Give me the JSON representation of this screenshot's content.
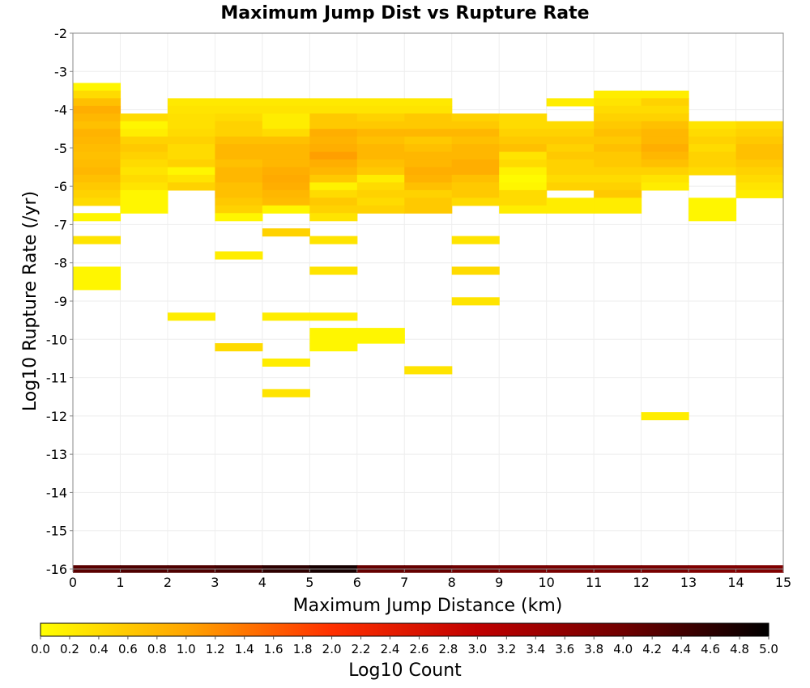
{
  "chart_data": {
    "type": "heatmap",
    "title": "Maximum Jump Dist vs Rupture Rate",
    "xlabel": "Maximum Jump Distance (km)",
    "ylabel": "Log10 Rupture Rate (/yr)",
    "xlim": [
      0,
      15
    ],
    "ylim": [
      -16,
      -2
    ],
    "x_ticks": [
      "0",
      "1",
      "2",
      "3",
      "4",
      "5",
      "6",
      "7",
      "8",
      "9",
      "10",
      "11",
      "12",
      "13",
      "14",
      "15"
    ],
    "y_ticks": [
      "-2",
      "-3",
      "-4",
      "-5",
      "-6",
      "-7",
      "-8",
      "-9",
      "-10",
      "-11",
      "-12",
      "-13",
      "-14",
      "-15",
      "-16"
    ],
    "grid": true,
    "x_bin_width": 1,
    "y_bin_height": 0.2,
    "colorbar": {
      "label": "Log10 Count",
      "min": 0,
      "max": 5,
      "ticks": [
        "0.0",
        "0.2",
        "0.4",
        "0.6",
        "0.8",
        "1.0",
        "1.2",
        "1.4",
        "1.6",
        "1.8",
        "2.0",
        "2.2",
        "2.4",
        "2.6",
        "2.8",
        "3.0",
        "3.2",
        "3.4",
        "3.6",
        "3.8",
        "4.0",
        "4.2",
        "4.4",
        "4.6",
        "4.8",
        "5.0"
      ],
      "colors": [
        "#ffff00",
        "#ffa500",
        "#ff3000",
        "#c00000",
        "#700000",
        "#000000"
      ]
    },
    "columns": [
      {
        "x": 0,
        "cells": [
          [
            -3.4,
            0.1
          ],
          [
            -3.6,
            0.4
          ],
          [
            -3.8,
            0.7
          ],
          [
            -4.0,
            0.9
          ],
          [
            -4.2,
            0.8
          ],
          [
            -4.4,
            0.7
          ],
          [
            -4.6,
            0.85
          ],
          [
            -4.8,
            0.8
          ],
          [
            -5.0,
            0.75
          ],
          [
            -5.2,
            0.7
          ],
          [
            -5.4,
            0.75
          ],
          [
            -5.6,
            0.8
          ],
          [
            -5.8,
            0.7
          ],
          [
            -6.0,
            0.6
          ],
          [
            -6.2,
            0.5
          ],
          [
            -6.4,
            0.4
          ],
          [
            -6.8,
            0.1
          ],
          [
            -7.4,
            0.3
          ],
          [
            -8.2,
            0.1
          ],
          [
            -8.4,
            0.1
          ],
          [
            -8.6,
            0.1
          ]
        ]
      },
      {
        "x": 1,
        "cells": [
          [
            -4.2,
            0.4
          ],
          [
            -4.4,
            0.1
          ],
          [
            -4.6,
            0.2
          ],
          [
            -4.8,
            0.5
          ],
          [
            -5.0,
            0.6
          ],
          [
            -5.2,
            0.5
          ],
          [
            -5.4,
            0.4
          ],
          [
            -5.6,
            0.3
          ],
          [
            -5.8,
            0.4
          ],
          [
            -6.0,
            0.3
          ],
          [
            -6.2,
            0.1
          ],
          [
            -6.4,
            0.1
          ],
          [
            -6.6,
            0.1
          ]
        ]
      },
      {
        "x": 2,
        "cells": [
          [
            -3.8,
            0.25
          ],
          [
            -4.0,
            0.3
          ],
          [
            -4.2,
            0.35
          ],
          [
            -4.4,
            0.35
          ],
          [
            -4.6,
            0.4
          ],
          [
            -4.8,
            0.5
          ],
          [
            -5.0,
            0.4
          ],
          [
            -5.2,
            0.4
          ],
          [
            -5.4,
            0.5
          ],
          [
            -5.6,
            0.1
          ],
          [
            -5.8,
            0.3
          ],
          [
            -6.0,
            0.5
          ],
          [
            -9.4,
            0.2
          ]
        ]
      },
      {
        "x": 3,
        "cells": [
          [
            -3.8,
            0.25
          ],
          [
            -4.0,
            0.3
          ],
          [
            -4.2,
            0.4
          ],
          [
            -4.4,
            0.5
          ],
          [
            -4.6,
            0.5
          ],
          [
            -4.8,
            0.7
          ],
          [
            -5.0,
            0.8
          ],
          [
            -5.2,
            0.8
          ],
          [
            -5.4,
            0.7
          ],
          [
            -5.6,
            0.8
          ],
          [
            -5.8,
            0.8
          ],
          [
            -6.0,
            0.7
          ],
          [
            -6.2,
            0.7
          ],
          [
            -6.4,
            0.6
          ],
          [
            -6.6,
            0.5
          ],
          [
            -6.8,
            0.1
          ],
          [
            -7.8,
            0.2
          ],
          [
            -10.2,
            0.4
          ]
        ]
      },
      {
        "x": 4,
        "cells": [
          [
            -3.8,
            0.25
          ],
          [
            -4.0,
            0.3
          ],
          [
            -4.2,
            0.2
          ],
          [
            -4.4,
            0.2
          ],
          [
            -4.6,
            0.4
          ],
          [
            -4.8,
            0.7
          ],
          [
            -5.0,
            0.8
          ],
          [
            -5.2,
            0.8
          ],
          [
            -5.4,
            0.8
          ],
          [
            -5.6,
            0.9
          ],
          [
            -5.8,
            0.95
          ],
          [
            -6.0,
            0.9
          ],
          [
            -6.2,
            0.8
          ],
          [
            -6.4,
            0.75
          ],
          [
            -6.6,
            0.1
          ],
          [
            -7.2,
            0.5
          ],
          [
            -9.4,
            0.2
          ],
          [
            -10.6,
            0.2
          ],
          [
            -11.4,
            0.3
          ]
        ]
      },
      {
        "x": 5,
        "cells": [
          [
            -3.8,
            0.25
          ],
          [
            -4.0,
            0.3
          ],
          [
            -4.2,
            0.6
          ],
          [
            -4.4,
            0.6
          ],
          [
            -4.6,
            0.9
          ],
          [
            -4.8,
            0.85
          ],
          [
            -5.0,
            0.9
          ],
          [
            -5.2,
            1.05
          ],
          [
            -5.4,
            0.9
          ],
          [
            -5.6,
            0.8
          ],
          [
            -5.8,
            0.6
          ],
          [
            -6.0,
            0.15
          ],
          [
            -6.2,
            0.4
          ],
          [
            -6.4,
            0.6
          ],
          [
            -6.6,
            0.5
          ],
          [
            -6.8,
            0.3
          ],
          [
            -7.4,
            0.3
          ],
          [
            -8.2,
            0.3
          ],
          [
            -9.4,
            0.2
          ],
          [
            -9.8,
            0.1
          ],
          [
            -10.0,
            0.1
          ],
          [
            -10.2,
            0.1
          ]
        ]
      },
      {
        "x": 6,
        "cells": [
          [
            -3.8,
            0.25
          ],
          [
            -4.0,
            0.3
          ],
          [
            -4.2,
            0.5
          ],
          [
            -4.4,
            0.6
          ],
          [
            -4.6,
            0.8
          ],
          [
            -4.8,
            0.7
          ],
          [
            -5.0,
            0.8
          ],
          [
            -5.2,
            0.8
          ],
          [
            -5.4,
            0.7
          ],
          [
            -5.6,
            0.6
          ],
          [
            -5.8,
            0.2
          ],
          [
            -6.0,
            0.4
          ],
          [
            -6.2,
            0.5
          ],
          [
            -6.4,
            0.4
          ],
          [
            -6.6,
            0.5
          ],
          [
            -9.8,
            0.1
          ],
          [
            -10.0,
            0.1
          ]
        ]
      },
      {
        "x": 7,
        "cells": [
          [
            -3.8,
            0.25
          ],
          [
            -4.0,
            0.3
          ],
          [
            -4.2,
            0.6
          ],
          [
            -4.4,
            0.6
          ],
          [
            -4.6,
            0.8
          ],
          [
            -4.8,
            0.6
          ],
          [
            -5.0,
            0.7
          ],
          [
            -5.2,
            0.8
          ],
          [
            -5.4,
            0.8
          ],
          [
            -5.6,
            0.9
          ],
          [
            -5.8,
            0.85
          ],
          [
            -6.0,
            0.7
          ],
          [
            -6.2,
            0.5
          ],
          [
            -6.4,
            0.6
          ],
          [
            -6.6,
            0.6
          ],
          [
            -10.8,
            0.3
          ]
        ]
      },
      {
        "x": 8,
        "cells": [
          [
            -4.2,
            0.5
          ],
          [
            -4.4,
            0.6
          ],
          [
            -4.6,
            0.8
          ],
          [
            -4.8,
            0.7
          ],
          [
            -5.0,
            0.8
          ],
          [
            -5.2,
            0.8
          ],
          [
            -5.4,
            0.9
          ],
          [
            -5.6,
            0.9
          ],
          [
            -5.8,
            0.7
          ],
          [
            -6.0,
            0.6
          ],
          [
            -6.2,
            0.6
          ],
          [
            -6.4,
            0.4
          ],
          [
            -7.4,
            0.3
          ],
          [
            -8.2,
            0.4
          ],
          [
            -9.0,
            0.3
          ]
        ]
      },
      {
        "x": 9,
        "cells": [
          [
            -4.2,
            0.4
          ],
          [
            -4.4,
            0.4
          ],
          [
            -4.6,
            0.5
          ],
          [
            -4.8,
            0.6
          ],
          [
            -5.0,
            0.7
          ],
          [
            -5.2,
            0.3
          ],
          [
            -5.4,
            0.4
          ],
          [
            -5.6,
            0.15
          ],
          [
            -5.8,
            0.05
          ],
          [
            -6.0,
            0.1
          ],
          [
            -6.2,
            0.4
          ],
          [
            -6.4,
            0.4
          ],
          [
            -6.6,
            0.2
          ]
        ]
      },
      {
        "x": 10,
        "cells": [
          [
            -3.8,
            0.2
          ],
          [
            -4.4,
            0.4
          ],
          [
            -4.6,
            0.5
          ],
          [
            -4.8,
            0.6
          ],
          [
            -5.0,
            0.5
          ],
          [
            -5.2,
            0.6
          ],
          [
            -5.4,
            0.5
          ],
          [
            -5.6,
            0.5
          ],
          [
            -5.8,
            0.4
          ],
          [
            -6.0,
            0.5
          ],
          [
            -6.4,
            0.2
          ],
          [
            -6.6,
            0.2
          ]
        ]
      },
      {
        "x": 11,
        "cells": [
          [
            -3.6,
            0.2
          ],
          [
            -3.8,
            0.3
          ],
          [
            -4.0,
            0.4
          ],
          [
            -4.2,
            0.5
          ],
          [
            -4.4,
            0.6
          ],
          [
            -4.6,
            0.7
          ],
          [
            -4.8,
            0.6
          ],
          [
            -5.0,
            0.7
          ],
          [
            -5.2,
            0.6
          ],
          [
            -5.4,
            0.6
          ],
          [
            -5.6,
            0.5
          ],
          [
            -5.8,
            0.4
          ],
          [
            -6.0,
            0.5
          ],
          [
            -6.2,
            0.6
          ],
          [
            -6.4,
            0.2
          ],
          [
            -6.6,
            0.2
          ]
        ]
      },
      {
        "x": 12,
        "cells": [
          [
            -3.6,
            0.2
          ],
          [
            -3.8,
            0.5
          ],
          [
            -4.0,
            0.4
          ],
          [
            -4.2,
            0.5
          ],
          [
            -4.4,
            0.7
          ],
          [
            -4.6,
            0.8
          ],
          [
            -4.8,
            0.8
          ],
          [
            -5.0,
            0.9
          ],
          [
            -5.2,
            0.8
          ],
          [
            -5.4,
            0.7
          ],
          [
            -5.6,
            0.5
          ],
          [
            -5.8,
            0.3
          ],
          [
            -6.0,
            0.2
          ],
          [
            -12.0,
            0.2
          ]
        ]
      },
      {
        "x": 13,
        "cells": [
          [
            -4.4,
            0.3
          ],
          [
            -4.6,
            0.4
          ],
          [
            -4.8,
            0.5
          ],
          [
            -5.0,
            0.4
          ],
          [
            -5.2,
            0.5
          ],
          [
            -5.4,
            0.5
          ],
          [
            -5.6,
            0.4
          ],
          [
            -6.4,
            0.1
          ],
          [
            -6.6,
            0.1
          ],
          [
            -6.8,
            0.1
          ]
        ]
      },
      {
        "x": 14,
        "cells": [
          [
            -4.4,
            0.4
          ],
          [
            -4.6,
            0.5
          ],
          [
            -4.8,
            0.6
          ],
          [
            -5.0,
            0.7
          ],
          [
            -5.2,
            0.7
          ],
          [
            -5.4,
            0.6
          ],
          [
            -5.6,
            0.5
          ],
          [
            -5.8,
            0.4
          ],
          [
            -6.0,
            0.3
          ],
          [
            -6.2,
            0.2
          ]
        ]
      }
    ],
    "bottom_row": {
      "y": -16.0,
      "values": [
        4.2,
        4.3,
        4.3,
        4.4,
        4.6,
        4.8,
        4.1,
        4.1,
        4.0,
        3.9,
        3.9,
        3.9,
        3.9,
        3.8,
        3.8
      ]
    }
  }
}
